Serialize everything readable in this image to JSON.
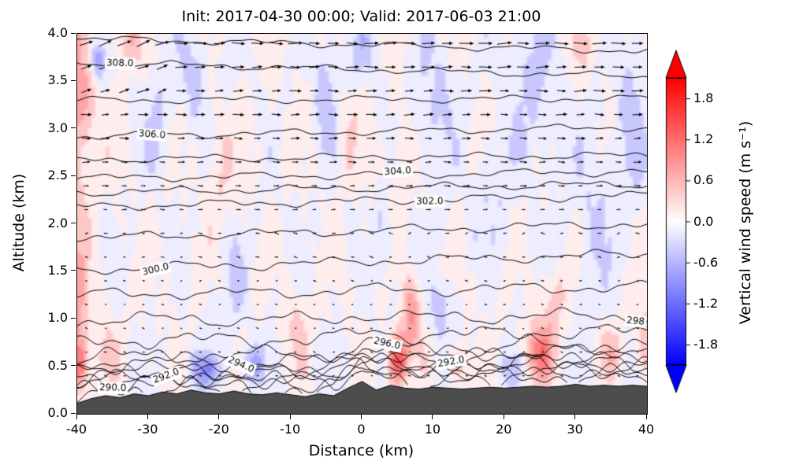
{
  "chart_data": {
    "type": "contour",
    "title": "Init: 2017-04-30 00:00; Valid: 2017-06-03 21:00",
    "xlabel": "Distance (km)",
    "ylabel": "Altitude (km)",
    "xlim": [
      -40,
      40
    ],
    "ylim": [
      0,
      4
    ],
    "grid": false,
    "xtick_values": [
      -40,
      -30,
      -20,
      -10,
      0,
      10,
      20,
      30,
      40
    ],
    "xtick_labels": [
      "-40",
      "-30",
      "-20",
      "-10",
      "0",
      "10",
      "20",
      "30",
      "40"
    ],
    "ytick_values": [
      0,
      0.5,
      1,
      1.5,
      2,
      2.5,
      3,
      3.5,
      4
    ],
    "ytick_labels": [
      "0.0",
      "0.5",
      "1.0",
      "1.5",
      "2.0",
      "2.5",
      "3.0",
      "3.5",
      "4.0"
    ],
    "colorbar": {
      "label": "Vertical wind speed (m s⁻¹)",
      "tick_values": [
        1.8,
        1.2,
        0.6,
        0.0,
        -0.6,
        -1.2,
        -1.8
      ],
      "tick_labels": [
        "1.8",
        "1.2",
        "0.6",
        "0.0",
        "-0.6",
        "-1.2",
        "-1.8"
      ],
      "vmin": -2.1,
      "vmax": 2.1,
      "cmap": "blue-white-red",
      "extend": "both"
    },
    "contours": {
      "field": "potential temperature (K)",
      "interval": 1.0,
      "levels": [
        [
          289,
          0.3,
          0.35
        ],
        [
          290,
          0.34,
          0.39
        ],
        [
          291,
          0.38,
          0.43
        ],
        [
          292,
          0.42,
          0.47
        ],
        [
          293,
          0.46,
          0.52
        ],
        [
          294,
          0.5,
          0.57
        ],
        [
          295,
          0.55,
          0.63
        ],
        [
          296,
          0.62,
          0.7
        ],
        [
          297,
          0.78,
          0.85
        ],
        [
          298,
          1.0,
          1.02
        ],
        [
          299,
          1.26,
          1.33
        ],
        [
          300,
          1.52,
          1.68
        ],
        [
          301,
          1.85,
          2.0
        ],
        [
          302,
          2.18,
          2.3
        ],
        [
          303,
          2.33,
          2.42
        ],
        [
          304,
          2.48,
          2.55
        ],
        [
          305,
          2.68,
          2.72
        ],
        [
          306,
          2.92,
          3.02
        ],
        [
          307,
          3.3,
          3.32
        ],
        [
          308,
          3.7,
          3.55
        ],
        [
          309,
          3.95,
          3.82
        ]
      ]
    },
    "contour_labels": [
      {
        "text": "308.0",
        "level": 308,
        "x": -34
      },
      {
        "text": "306.0",
        "level": 306,
        "x": -29.5
      },
      {
        "text": "304.0",
        "level": 304,
        "x": 5
      },
      {
        "text": "302.0",
        "level": 302,
        "x": 9.5
      },
      {
        "text": "300.0",
        "level": 300,
        "x": -29
      },
      {
        "text": "298",
        "level": 298,
        "x": 38.4
      },
      {
        "text": "296.0",
        "level": 296,
        "x": 3.5
      },
      {
        "text": "294.0",
        "level": 294,
        "x": -17
      },
      {
        "text": "292.0",
        "level": 292,
        "x": -27.5
      },
      {
        "text": "292.0",
        "level": 292,
        "x": 12.5
      },
      {
        "text": "290.0",
        "level": 290,
        "x": -35
      }
    ],
    "terrain": {
      "color": "#4d4d4d",
      "x": [
        -40,
        -38,
        -36,
        -34,
        -32,
        -30,
        -28,
        -26,
        -24,
        -22,
        -20,
        -18,
        -16,
        -14,
        -12,
        -10,
        -8,
        -6,
        -4,
        -2,
        0,
        2,
        4,
        6,
        8,
        10,
        12,
        14,
        16,
        18,
        20,
        22,
        24,
        26,
        28,
        30,
        32,
        34,
        36,
        38,
        40
      ],
      "z": [
        0.11,
        0.16,
        0.19,
        0.17,
        0.21,
        0.19,
        0.23,
        0.21,
        0.25,
        0.22,
        0.21,
        0.24,
        0.21,
        0.2,
        0.22,
        0.2,
        0.18,
        0.21,
        0.19,
        0.27,
        0.34,
        0.25,
        0.3,
        0.27,
        0.26,
        0.28,
        0.27,
        0.26,
        0.27,
        0.28,
        0.27,
        0.28,
        0.29,
        0.28,
        0.29,
        0.31,
        0.29,
        0.3,
        0.29,
        0.3,
        0.29
      ]
    },
    "shading_blobs": [
      [
        -40,
        3.3,
        2.5,
        0.9,
        0.75
      ],
      [
        -37.5,
        3.75,
        1.2,
        0.22,
        -0.9
      ],
      [
        -33,
        3.95,
        2.0,
        0.3,
        0.5
      ],
      [
        -40,
        1.1,
        1.4,
        0.9,
        0.7
      ],
      [
        -40,
        0.5,
        1.0,
        0.25,
        0.9
      ],
      [
        -36,
        0.6,
        1.5,
        0.3,
        0.45
      ],
      [
        -29,
        3.05,
        1.6,
        0.5,
        -0.45
      ],
      [
        -24,
        3.6,
        2.2,
        0.5,
        -0.4
      ],
      [
        -20,
        2.55,
        2.0,
        0.6,
        0.3
      ],
      [
        -22,
        0.45,
        2.0,
        0.18,
        -0.85
      ],
      [
        -15.5,
        0.5,
        1.6,
        0.2,
        -0.7
      ],
      [
        -18,
        1.35,
        1.6,
        0.5,
        -0.35
      ],
      [
        -9,
        0.85,
        1.6,
        0.4,
        0.4
      ],
      [
        -5,
        3.35,
        1.6,
        0.6,
        -0.5
      ],
      [
        -2,
        2.95,
        1.5,
        0.5,
        0.3
      ],
      [
        0,
        3.85,
        2.0,
        0.35,
        -0.4
      ],
      [
        3,
        1.85,
        1.3,
        0.5,
        -0.35
      ],
      [
        5,
        0.55,
        1.3,
        0.28,
        1.5
      ],
      [
        7,
        1.0,
        1.3,
        0.4,
        0.85
      ],
      [
        5.5,
        2.6,
        1.6,
        0.6,
        0.3
      ],
      [
        11,
        1.1,
        1.3,
        0.3,
        -0.6
      ],
      [
        13.5,
        0.5,
        1.5,
        0.2,
        0.5
      ],
      [
        10,
        3.3,
        3.0,
        0.8,
        -0.35
      ],
      [
        18,
        2.25,
        2.2,
        0.6,
        -0.3
      ],
      [
        24,
        3.5,
        4.0,
        0.9,
        -0.35
      ],
      [
        25,
        0.62,
        1.9,
        0.3,
        1.1
      ],
      [
        27,
        1.15,
        1.6,
        0.35,
        0.5
      ],
      [
        21.5,
        0.45,
        1.5,
        0.18,
        -0.5
      ],
      [
        33,
        2.05,
        3.0,
        0.9,
        -0.3
      ],
      [
        35,
        0.65,
        2.0,
        0.3,
        0.4
      ],
      [
        38,
        3.1,
        2.2,
        0.9,
        -0.4
      ],
      [
        31,
        3.9,
        2.0,
        0.3,
        0.35
      ],
      [
        40,
        0.8,
        1.2,
        0.5,
        0.5
      ]
    ],
    "quiver": {
      "x_start": -38.7,
      "x_end": 38.7,
      "cols": 30,
      "z_start": 0.4,
      "z_end": 3.9,
      "rows": 15,
      "color": "#000000"
    }
  }
}
